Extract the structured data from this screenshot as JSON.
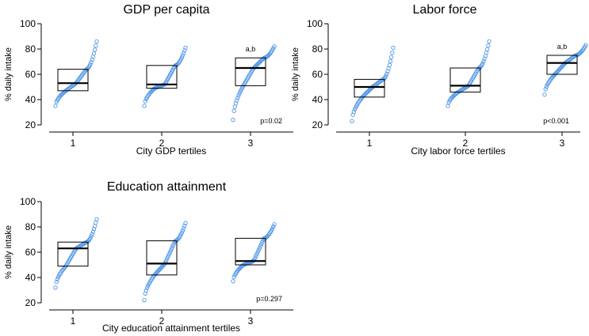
{
  "colors": {
    "points": "#4f95e6",
    "lines": "#000000"
  },
  "chart_data": [
    {
      "type": "scatter",
      "title": "GDP per capita",
      "xlabel": "City GDP tertiles",
      "ylabel": "% daily intake",
      "ylim": [
        20,
        100
      ],
      "yticks": [
        "20",
        "40",
        "60",
        "80",
        "100"
      ],
      "categories": [
        "1",
        "2",
        "3"
      ],
      "boxes": [
        {
          "q1": 47,
          "median": 53,
          "q3": 64
        },
        {
          "q1": 49,
          "median": 52,
          "q3": 67
        },
        {
          "q1": 51,
          "median": 65,
          "q3": 73
        }
      ],
      "series": [
        {
          "name": "1",
          "min": 35,
          "max": 86
        },
        {
          "name": "2",
          "min": 35,
          "max": 81
        },
        {
          "name": "3",
          "min": 24,
          "max": 82
        }
      ],
      "annotations": [
        {
          "category": "3",
          "text": "a,b"
        }
      ],
      "p_value": "p=0.02"
    },
    {
      "type": "scatter",
      "title": "Labor force",
      "xlabel": "City labor force tertiles",
      "ylabel": "% daily intake",
      "ylim": [
        20,
        100
      ],
      "yticks": [
        "20",
        "40",
        "60",
        "80",
        "100"
      ],
      "categories": [
        "1",
        "2",
        "3"
      ],
      "boxes": [
        {
          "q1": 42,
          "median": 50,
          "q3": 56
        },
        {
          "q1": 46,
          "median": 51,
          "q3": 65
        },
        {
          "q1": 60,
          "median": 69,
          "q3": 75
        }
      ],
      "series": [
        {
          "name": "1",
          "min": 23,
          "max": 81
        },
        {
          "name": "2",
          "min": 35,
          "max": 86
        },
        {
          "name": "3",
          "min": 44,
          "max": 83
        }
      ],
      "annotations": [
        {
          "category": "3",
          "text": "a,b"
        }
      ],
      "p_value": "p<0.001"
    },
    {
      "type": "scatter",
      "title": "Education attainment",
      "xlabel": "City education attainment tertiles",
      "ylabel": "% daily intake",
      "ylim": [
        20,
        100
      ],
      "yticks": [
        "20",
        "40",
        "60",
        "80",
        "100"
      ],
      "categories": [
        "1",
        "2",
        "3"
      ],
      "boxes": [
        {
          "q1": 49,
          "median": 63,
          "q3": 68
        },
        {
          "q1": 42,
          "median": 51,
          "q3": 69
        },
        {
          "q1": 50,
          "median": 53,
          "q3": 71
        }
      ],
      "series": [
        {
          "name": "1",
          "min": 32,
          "max": 86
        },
        {
          "name": "2",
          "min": 22,
          "max": 83
        },
        {
          "name": "3",
          "min": 37,
          "max": 82
        }
      ],
      "annotations": [],
      "p_value": "p=0.297"
    }
  ]
}
